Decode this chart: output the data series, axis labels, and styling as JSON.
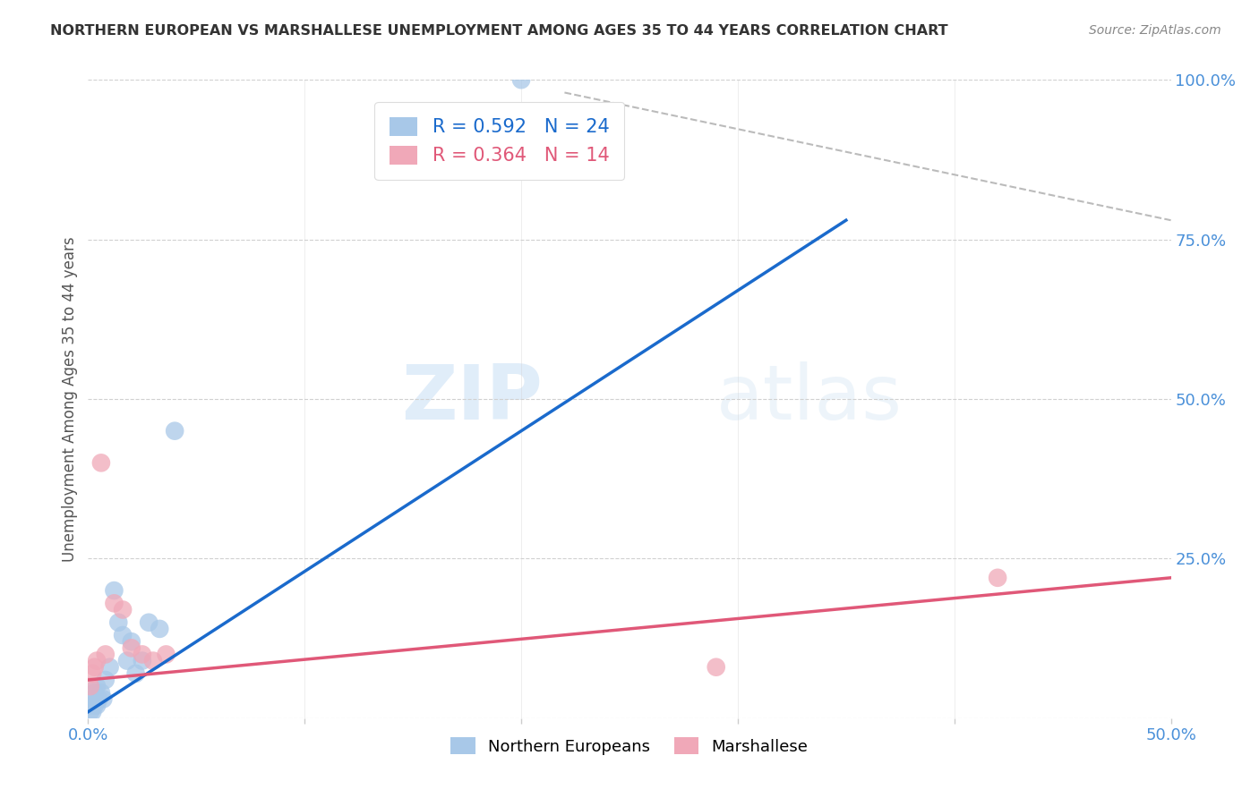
{
  "title": "NORTHERN EUROPEAN VS MARSHALLESE UNEMPLOYMENT AMONG AGES 35 TO 44 YEARS CORRELATION CHART",
  "source": "Source: ZipAtlas.com",
  "ylabel": "Unemployment Among Ages 35 to 44 years",
  "watermark_zip": "ZIP",
  "watermark_atlas": "atlas",
  "xlim": [
    0.0,
    0.5
  ],
  "ylim": [
    0.0,
    1.0
  ],
  "northern_R": 0.592,
  "northern_N": 24,
  "marshallese_R": 0.364,
  "marshallese_N": 14,
  "northern_color": "#a8c8e8",
  "marshallese_color": "#f0a8b8",
  "northern_line_color": "#1a6acc",
  "marshallese_line_color": "#e05878",
  "northern_line_x": [
    0.0,
    0.35
  ],
  "northern_line_y": [
    0.01,
    0.78
  ],
  "marshallese_line_x": [
    0.0,
    0.5
  ],
  "marshallese_line_y": [
    0.06,
    0.22
  ],
  "ref_line_x": [
    0.22,
    0.5
  ],
  "ref_line_y": [
    0.98,
    0.78
  ],
  "northern_x": [
    0.001,
    0.001,
    0.002,
    0.002,
    0.003,
    0.003,
    0.004,
    0.004,
    0.005,
    0.006,
    0.007,
    0.008,
    0.01,
    0.012,
    0.014,
    0.016,
    0.018,
    0.02,
    0.022,
    0.025,
    0.028,
    0.033,
    0.04,
    0.2
  ],
  "northern_y": [
    0.01,
    0.02,
    0.01,
    0.03,
    0.02,
    0.04,
    0.02,
    0.05,
    0.03,
    0.04,
    0.03,
    0.06,
    0.08,
    0.2,
    0.15,
    0.13,
    0.09,
    0.12,
    0.07,
    0.09,
    0.15,
    0.14,
    0.45,
    1.0
  ],
  "marshallese_x": [
    0.001,
    0.002,
    0.003,
    0.004,
    0.006,
    0.008,
    0.012,
    0.016,
    0.02,
    0.025,
    0.03,
    0.036,
    0.29,
    0.42
  ],
  "marshallese_y": [
    0.05,
    0.07,
    0.08,
    0.09,
    0.4,
    0.1,
    0.18,
    0.17,
    0.11,
    0.1,
    0.09,
    0.1,
    0.08,
    0.22
  ],
  "background_color": "#ffffff",
  "grid_color": "#d0d0d0",
  "tick_label_color": "#4a90d9",
  "title_color": "#333333",
  "source_color": "#888888",
  "ylabel_color": "#555555"
}
